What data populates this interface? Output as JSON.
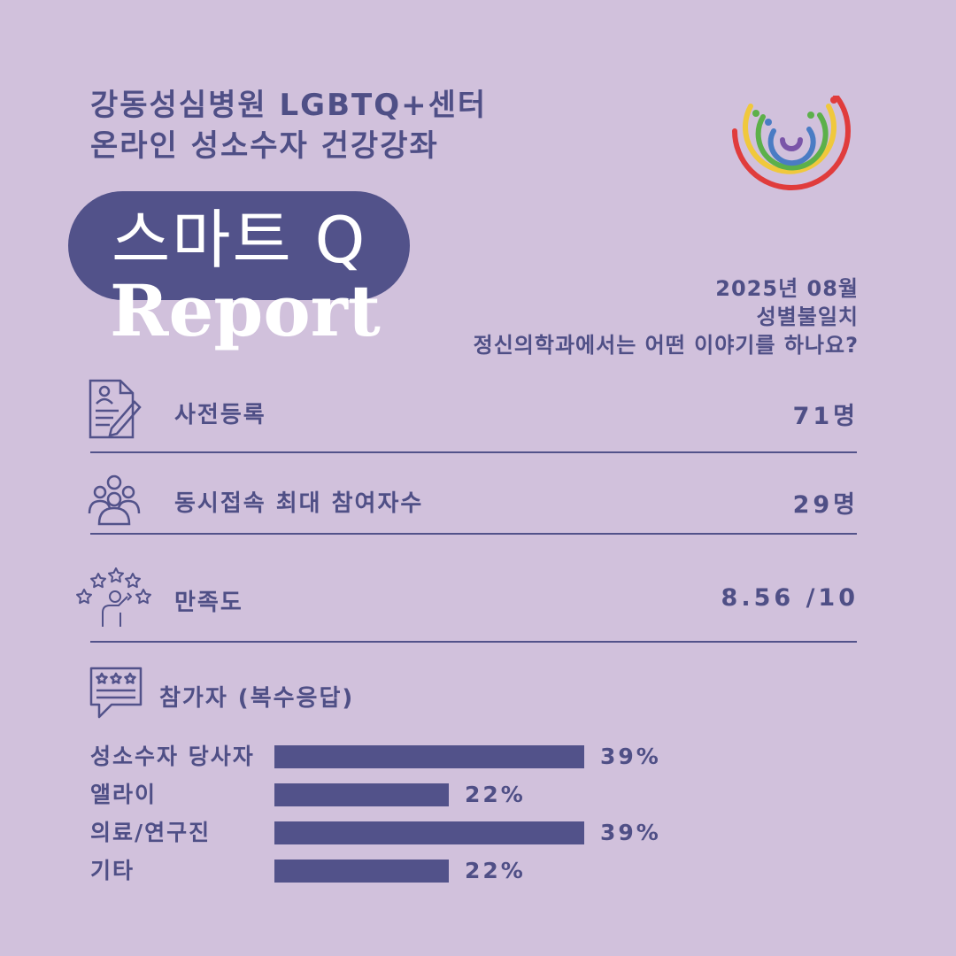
{
  "header": {
    "line1": "강동성심병원 LGBTQ+센터",
    "line2": "온라인 성소수자 건강강좌"
  },
  "badge": {
    "title": "스마트 Q",
    "subtitle": "Report"
  },
  "meta": {
    "date": "2025년 08월",
    "topic": "성별불일치",
    "question": "정신의학과에서는 어떤 이야기를 하나요?"
  },
  "stats": [
    {
      "icon": "registration-form-icon",
      "label": "사전등록",
      "value": "71명"
    },
    {
      "icon": "group-users-icon",
      "label": "동시접속 최대 참여자수",
      "value": "29명"
    },
    {
      "icon": "star-rating-icon",
      "label": "만족도",
      "value": "8.56 /10"
    }
  ],
  "participants": {
    "icon": "review-speech-icon",
    "title": "참가자 (복수응답)"
  },
  "chart_data": {
    "type": "bar",
    "orientation": "horizontal",
    "title": "참가자 (복수응답)",
    "categories": [
      "성소수자 당사자",
      "앨라이",
      "의료/연구진",
      "기타"
    ],
    "values": [
      39,
      22,
      39,
      22
    ],
    "value_labels": [
      "39%",
      "22%",
      "39%",
      "22%"
    ],
    "unit": "%",
    "bar_color": "#52528a"
  },
  "colors": {
    "background": "#d1c1dc",
    "primary": "#52528a",
    "text": "#4f4f86",
    "rainbow": [
      "#e03c3c",
      "#f0c83c",
      "#5cb04a",
      "#4a7cc4",
      "#7a55a8"
    ]
  }
}
